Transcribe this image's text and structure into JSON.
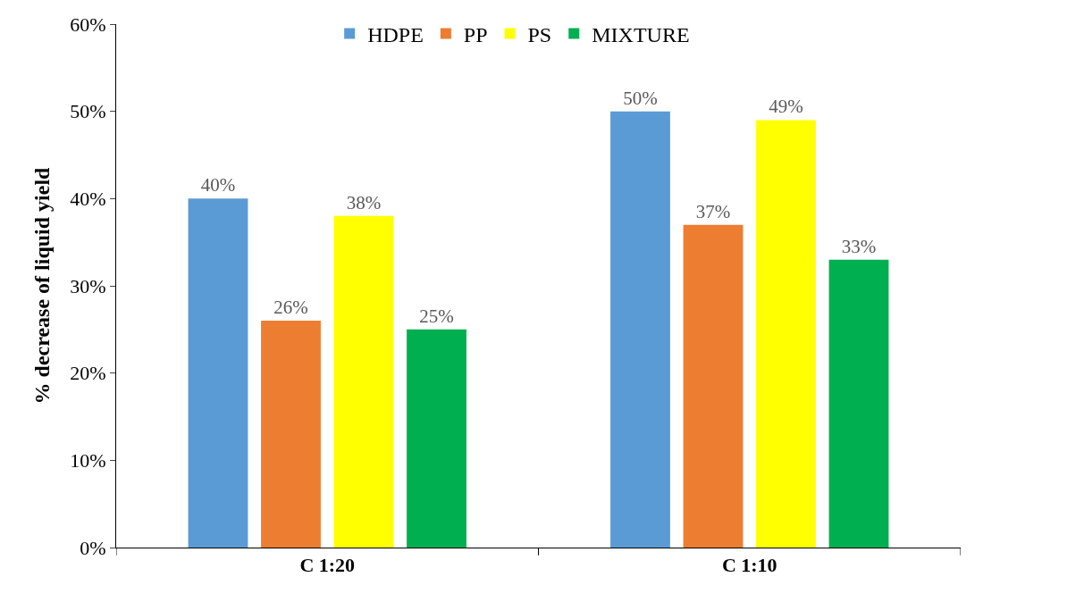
{
  "chart_data": {
    "type": "bar",
    "ylabel": "% decrease of liquid yield",
    "categories": [
      "C 1:20",
      "C 1:10"
    ],
    "series": [
      {
        "name": "HDPE",
        "color": "#5b9bd5",
        "values": [
          40,
          50
        ],
        "value_labels": [
          "40%",
          "50%"
        ]
      },
      {
        "name": "PP",
        "color": "#ed7d31",
        "values": [
          26,
          37
        ],
        "value_labels": [
          "26%",
          "37%"
        ]
      },
      {
        "name": "PS",
        "color": "#ffff00",
        "values": [
          38,
          49
        ],
        "value_labels": [
          "38%",
          "49%"
        ]
      },
      {
        "name": "MIXTURE",
        "color": "#00b050",
        "values": [
          25,
          33
        ],
        "value_labels": [
          "25%",
          "33%"
        ]
      }
    ],
    "ylim": [
      0,
      60
    ],
    "yticks": [
      {
        "value": 0,
        "label": "0%"
      },
      {
        "value": 10,
        "label": "10%"
      },
      {
        "value": 20,
        "label": "20%"
      },
      {
        "value": 30,
        "label": "30%"
      },
      {
        "value": 40,
        "label": "40%"
      },
      {
        "value": 50,
        "label": "50%"
      },
      {
        "value": 60,
        "label": "60%"
      }
    ],
    "grid": false,
    "legend": "top"
  }
}
